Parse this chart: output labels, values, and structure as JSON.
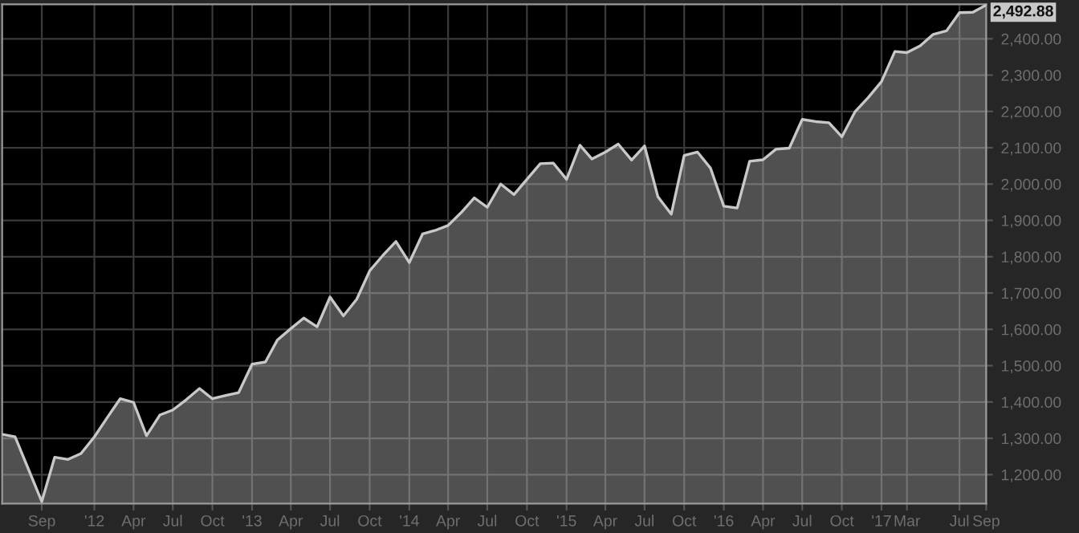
{
  "chart_data": {
    "type": "area",
    "x": [
      "2011-06",
      "2011-07",
      "2011-08",
      "2011-09",
      "2011-10",
      "2011-11",
      "2011-12",
      "2012-01",
      "2012-02",
      "2012-03",
      "2012-04",
      "2012-05",
      "2012-06",
      "2012-07",
      "2012-08",
      "2012-09",
      "2012-10",
      "2012-11",
      "2012-12",
      "2013-01",
      "2013-02",
      "2013-03",
      "2013-04",
      "2013-05",
      "2013-06",
      "2013-07",
      "2013-08",
      "2013-09",
      "2013-10",
      "2013-11",
      "2013-12",
      "2014-01",
      "2014-02",
      "2014-03",
      "2014-04",
      "2014-05",
      "2014-06",
      "2014-07",
      "2014-08",
      "2014-09",
      "2014-10",
      "2014-11",
      "2014-12",
      "2015-01",
      "2015-02",
      "2015-03",
      "2015-04",
      "2015-05",
      "2015-06",
      "2015-07",
      "2015-08",
      "2015-09",
      "2015-10",
      "2015-11",
      "2015-12",
      "2016-01",
      "2016-02",
      "2016-03",
      "2016-04",
      "2016-05",
      "2016-06",
      "2016-07",
      "2016-08",
      "2016-09",
      "2016-10",
      "2016-11",
      "2016-12",
      "2017-01",
      "2017-02",
      "2017-03",
      "2017-04",
      "2017-05",
      "2017-06",
      "2017-07",
      "2017-08",
      "2017-09"
    ],
    "series": [
      {
        "color": "#c8c8c8",
        "values": [
          1311,
          1304,
          1215,
          1126,
          1248,
          1242,
          1258,
          1304,
          1359,
          1409,
          1399,
          1307,
          1364,
          1378,
          1406,
          1437,
          1409,
          1418,
          1426,
          1504,
          1510,
          1571,
          1602,
          1631,
          1607,
          1689,
          1637,
          1683,
          1761,
          1804,
          1842,
          1784,
          1863,
          1872,
          1886,
          1921,
          1962,
          1936,
          2000,
          1971,
          2013,
          2056,
          2058,
          2013,
          2107,
          2069,
          2088,
          2110,
          2066,
          2105,
          1965,
          1917,
          2079,
          2088,
          2044,
          1939,
          1934,
          2063,
          2067,
          2096,
          2099,
          2178,
          2172,
          2169,
          2130,
          2200,
          2238,
          2282,
          2365,
          2362,
          2381,
          2412,
          2422,
          2472,
          2473,
          2492.88
        ]
      }
    ],
    "xlim": [
      "2011-06",
      "2017-09"
    ],
    "xticks": [
      {
        "value": "2011-09",
        "label": "Sep"
      },
      {
        "value": "2012-01",
        "label": "'12"
      },
      {
        "value": "2012-04",
        "label": "Apr"
      },
      {
        "value": "2012-07",
        "label": "Jul"
      },
      {
        "value": "2012-10",
        "label": "Oct"
      },
      {
        "value": "2013-01",
        "label": "'13"
      },
      {
        "value": "2013-04",
        "label": "Apr"
      },
      {
        "value": "2013-07",
        "label": "Jul"
      },
      {
        "value": "2013-10",
        "label": "Oct"
      },
      {
        "value": "2014-01",
        "label": "'14"
      },
      {
        "value": "2014-04",
        "label": "Apr"
      },
      {
        "value": "2014-07",
        "label": "Jul"
      },
      {
        "value": "2014-10",
        "label": "Oct"
      },
      {
        "value": "2015-01",
        "label": "'15"
      },
      {
        "value": "2015-04",
        "label": "Apr"
      },
      {
        "value": "2015-07",
        "label": "Jul"
      },
      {
        "value": "2015-10",
        "label": "Oct"
      },
      {
        "value": "2016-01",
        "label": "'16"
      },
      {
        "value": "2016-04",
        "label": "Apr"
      },
      {
        "value": "2016-07",
        "label": "Jul"
      },
      {
        "value": "2016-10",
        "label": "Oct"
      },
      {
        "value": "2017-01",
        "label": "'17"
      },
      {
        "value": "2017-03",
        "label": "Mar"
      },
      {
        "value": "2017-07",
        "label": "Jul"
      },
      {
        "value": "2017-09",
        "label": "Sep"
      }
    ],
    "ylim": [
      1120,
      2495
    ],
    "yticks": [
      {
        "value": 1200,
        "label": "1,200.00"
      },
      {
        "value": 1300,
        "label": "1,300.00"
      },
      {
        "value": 1400,
        "label": "1,400.00"
      },
      {
        "value": 1500,
        "label": "1,500.00"
      },
      {
        "value": 1600,
        "label": "1,600.00"
      },
      {
        "value": 1700,
        "label": "1,700.00"
      },
      {
        "value": 1800,
        "label": "1,800.00"
      },
      {
        "value": 1900,
        "label": "1,900.00"
      },
      {
        "value": 2000,
        "label": "2,000.00"
      },
      {
        "value": 2100,
        "label": "2,100.00"
      },
      {
        "value": 2200,
        "label": "2,200.00"
      },
      {
        "value": 2300,
        "label": "2,300.00"
      },
      {
        "value": 2400,
        "label": "2,400.00"
      }
    ],
    "grid": true,
    "annotations": [
      {
        "text": "2,492.88",
        "x": "2017-09",
        "y": 2492.88
      }
    ]
  }
}
